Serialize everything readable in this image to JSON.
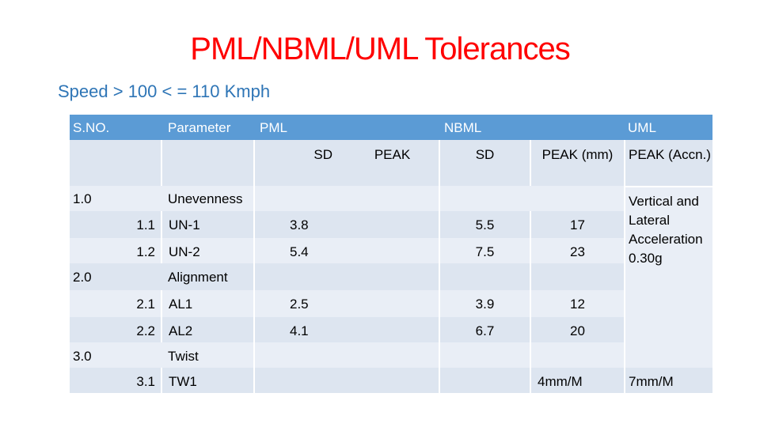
{
  "slide": {
    "title": "PML/NBML/UML Tolerances",
    "subtitle": "Speed > 100  < = 110 Kmph"
  },
  "colors": {
    "title": "#ff0000",
    "subtitle": "#2e75b6",
    "header": "#5b9bd5",
    "band_a": "#dde5f0",
    "band_b": "#e9eef6"
  },
  "table": {
    "headers": {
      "sno": "S.NO.",
      "parameter": "Parameter",
      "pml": "PML",
      "nbml": "NBML",
      "uml": "UML"
    },
    "subheaders": {
      "pml_sd": "SD",
      "pml_peak": "PEAK",
      "nbml_sd": "SD",
      "nbml_peak": "PEAK (mm)",
      "uml_peak": "PEAK (Accn.)"
    },
    "uml_note": "Vertical and Lateral Acceleration 0.30g",
    "rows": {
      "s1": {
        "sno": "1.0",
        "param": "Unevenness"
      },
      "r11": {
        "sno": "1.1",
        "param": "UN-1",
        "pml_sd": "3.8",
        "nbml_sd": "5.5",
        "nbml_peak": "17"
      },
      "r12": {
        "sno": "1.2",
        "param": "UN-2",
        "pml_sd": "5.4",
        "nbml_sd": "7.5",
        "nbml_peak": "23"
      },
      "s2": {
        "sno": "2.0",
        "param": "Alignment"
      },
      "r21": {
        "sno": "2.1",
        "param": "AL1",
        "pml_sd": "2.5",
        "nbml_sd": "3.9",
        "nbml_peak": "12"
      },
      "r22": {
        "sno": "2.2",
        "param": "AL2",
        "pml_sd": "4.1",
        "nbml_sd": "6.7",
        "nbml_peak": "20"
      },
      "s3": {
        "sno": "3.0",
        "param": "Twist"
      },
      "r31": {
        "sno": "3.1",
        "param": "TW1",
        "nbml_peak": "4mm/M",
        "uml_peak": "7mm/M"
      }
    }
  }
}
